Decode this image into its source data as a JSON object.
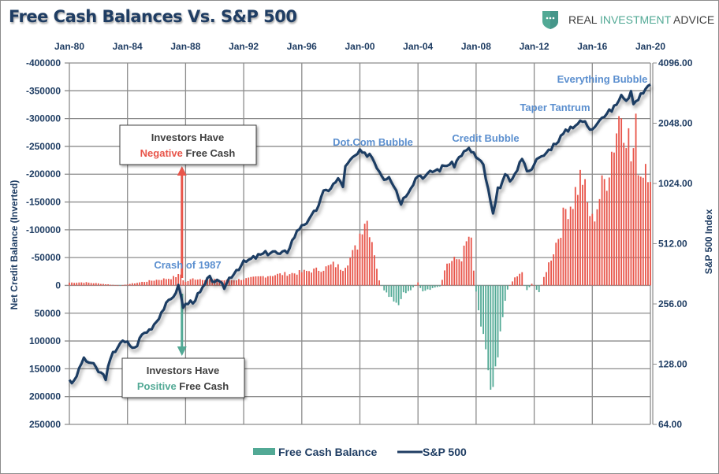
{
  "chart_data": {
    "type": "bar+line",
    "title": "Free Cash Balances Vs. S&P 500",
    "brand": {
      "text_part1": "REAL ",
      "text_part2": "INVESTMENT",
      "text_part3": " ADVICE"
    },
    "x_ticks": [
      "Jan-80",
      "Jan-84",
      "Jan-88",
      "Jan-92",
      "Jan-96",
      "Jan-00",
      "Jan-04",
      "Jan-08",
      "Jan-12",
      "Jan-16",
      "Jan-20"
    ],
    "x_range": [
      1980,
      2020
    ],
    "left_axis": {
      "label": "Net Credit Balance (Inverted)",
      "ticks": [
        "-400000",
        "-350000",
        "-300000",
        "-250000",
        "-200000",
        "-150000",
        "-100000",
        "-50000",
        "0",
        "50000",
        "100000",
        "150000",
        "200000",
        "250000"
      ],
      "range": [
        -400000,
        250000
      ],
      "inverted": true
    },
    "right_axis": {
      "label": "S&P 500 Index",
      "ticks": [
        "4096.00",
        "2048.00",
        "1024.00",
        "512.00",
        "256.00",
        "128.00",
        "64.00"
      ],
      "range": [
        64,
        4096
      ],
      "scale": "log2"
    },
    "grid": true,
    "legend": {
      "position": "bottom",
      "items": [
        {
          "name": "Free Cash Balance",
          "type": "bar",
          "color": "#52a995"
        },
        {
          "name": "S&P 500",
          "type": "line",
          "color": "#1f3d63"
        }
      ]
    },
    "colors": {
      "negative_free_cash": "#e8554a",
      "positive_free_cash": "#52a995",
      "sp500": "#1f3d63",
      "annotation": "#5b8fcf",
      "grid": "#8c8c8c"
    },
    "annotations": [
      {
        "text": "Dot.Com Bubble",
        "x": 1999.3,
        "sp": 1700
      },
      {
        "text": "Credit Bubble",
        "x": 2007.1,
        "sp": 1850
      },
      {
        "text": "Taper Tantrum",
        "x": 2014.6,
        "sp": 2450
      },
      {
        "text": "Everything Bubble",
        "x": 2017.4,
        "sp": 3600
      },
      {
        "text": "Crash of 1987",
        "x": 1986.7,
        "sp": 330
      }
    ],
    "callouts": {
      "negative": {
        "line1": "Investors Have",
        "word": "Negative",
        "rest": " Free Cash"
      },
      "positive": {
        "line1": "Investors Have",
        "word": "Positive",
        "rest": " Free Cash"
      }
    },
    "free_cash_series": {
      "name": "Free Cash Balance (inverted: negative = red bars above zero)",
      "points": [
        [
          1980.0,
          -5000
        ],
        [
          1981.0,
          -5500
        ],
        [
          1982.0,
          -3500
        ],
        [
          1983.0,
          -1000
        ],
        [
          1983.5,
          500
        ],
        [
          1984.0,
          -2000
        ],
        [
          1985.0,
          -6000
        ],
        [
          1986.0,
          -10000
        ],
        [
          1987.0,
          -13000
        ],
        [
          1987.7,
          -20000
        ],
        [
          1987.9,
          -5000
        ],
        [
          1988.5,
          -12000
        ],
        [
          1989.5,
          -11000
        ],
        [
          1990.5,
          -9000
        ],
        [
          1991.5,
          -10000
        ],
        [
          1992.5,
          -13000
        ],
        [
          1993.5,
          -17000
        ],
        [
          1994.5,
          -20000
        ],
        [
          1995.5,
          -22000
        ],
        [
          1996.5,
          -26000
        ],
        [
          1997.5,
          -30000
        ],
        [
          1998.2,
          -38000
        ],
        [
          1998.8,
          -30000
        ],
        [
          1999.3,
          -48000
        ],
        [
          1999.8,
          -70000
        ],
        [
          2000.1,
          -105000
        ],
        [
          2000.4,
          -125000
        ],
        [
          2000.7,
          -100000
        ],
        [
          2001.0,
          -60000
        ],
        [
          2001.3,
          -10000
        ],
        [
          2001.7,
          12000
        ],
        [
          2002.2,
          25000
        ],
        [
          2002.6,
          40000
        ],
        [
          2003.0,
          15000
        ],
        [
          2003.5,
          8000
        ],
        [
          2004.0,
          -5000
        ],
        [
          2004.3,
          12000
        ],
        [
          2004.7,
          8000
        ],
        [
          2005.5,
          2000
        ],
        [
          2006.0,
          -40000
        ],
        [
          2006.5,
          -45000
        ],
        [
          2007.0,
          -50000
        ],
        [
          2007.4,
          -80000
        ],
        [
          2007.6,
          -95000
        ],
        [
          2007.9,
          -5000
        ],
        [
          2008.3,
          60000
        ],
        [
          2008.7,
          120000
        ],
        [
          2009.0,
          170000
        ],
        [
          2009.3,
          150000
        ],
        [
          2009.6,
          90000
        ],
        [
          2009.9,
          40000
        ],
        [
          2010.2,
          5000
        ],
        [
          2010.7,
          -15000
        ],
        [
          2011.2,
          -22000
        ],
        [
          2011.4,
          12000
        ],
        [
          2011.9,
          -5000
        ],
        [
          2012.3,
          15000
        ],
        [
          2012.8,
          -25000
        ],
        [
          2013.3,
          -60000
        ],
        [
          2013.8,
          -100000
        ],
        [
          2014.2,
          -140000
        ],
        [
          2014.6,
          -150000
        ],
        [
          2015.0,
          -180000
        ],
        [
          2015.3,
          -200000
        ],
        [
          2015.6,
          -150000
        ],
        [
          2016.0,
          -115000
        ],
        [
          2016.5,
          -160000
        ],
        [
          2017.0,
          -200000
        ],
        [
          2017.4,
          -250000
        ],
        [
          2017.8,
          -300000
        ],
        [
          2018.0,
          -320000
        ],
        [
          2018.3,
          -300000
        ],
        [
          2018.7,
          -220000
        ],
        [
          2019.0,
          -270000
        ],
        [
          2019.3,
          -200000
        ],
        [
          2019.7,
          -230000
        ],
        [
          2020.0,
          -215000
        ]
      ]
    },
    "sp500_series": {
      "name": "S&P 500",
      "points": [
        [
          1980.0,
          108
        ],
        [
          1980.3,
          102
        ],
        [
          1980.9,
          135
        ],
        [
          1981.5,
          130
        ],
        [
          1982.0,
          118
        ],
        [
          1982.5,
          110
        ],
        [
          1982.9,
          140
        ],
        [
          1983.5,
          165
        ],
        [
          1984.0,
          163
        ],
        [
          1984.5,
          153
        ],
        [
          1985.0,
          180
        ],
        [
          1985.5,
          190
        ],
        [
          1986.0,
          211
        ],
        [
          1986.5,
          245
        ],
        [
          1987.0,
          270
        ],
        [
          1987.6,
          320
        ],
        [
          1987.8,
          240
        ],
        [
          1988.0,
          255
        ],
        [
          1988.5,
          265
        ],
        [
          1989.0,
          290
        ],
        [
          1989.6,
          345
        ],
        [
          1990.0,
          335
        ],
        [
          1990.7,
          310
        ],
        [
          1991.0,
          345
        ],
        [
          1991.5,
          380
        ],
        [
          1992.0,
          410
        ],
        [
          1993.0,
          445
        ],
        [
          1994.0,
          470
        ],
        [
          1994.5,
          450
        ],
        [
          1995.0,
          470
        ],
        [
          1995.5,
          560
        ],
        [
          1996.0,
          640
        ],
        [
          1996.5,
          665
        ],
        [
          1997.0,
          760
        ],
        [
          1997.5,
          920
        ],
        [
          1998.0,
          980
        ],
        [
          1998.6,
          1090
        ],
        [
          1998.8,
          960
        ],
        [
          1999.0,
          1230
        ],
        [
          1999.5,
          1370
        ],
        [
          2000.0,
          1470
        ],
        [
          2000.3,
          1420
        ],
        [
          2000.7,
          1450
        ],
        [
          2001.0,
          1320
        ],
        [
          2001.3,
          1200
        ],
        [
          2001.7,
          1080
        ],
        [
          2002.0,
          1130
        ],
        [
          2002.5,
          950
        ],
        [
          2002.8,
          820
        ],
        [
          2003.0,
          860
        ],
        [
          2003.5,
          990
        ],
        [
          2004.0,
          1130
        ],
        [
          2004.5,
          1110
        ],
        [
          2005.0,
          1180
        ],
        [
          2005.5,
          1210
        ],
        [
          2006.0,
          1280
        ],
        [
          2006.5,
          1270
        ],
        [
          2007.0,
          1440
        ],
        [
          2007.5,
          1510
        ],
        [
          2007.8,
          1470
        ],
        [
          2008.0,
          1380
        ],
        [
          2008.5,
          1260
        ],
        [
          2008.8,
          970
        ],
        [
          2009.0,
          820
        ],
        [
          2009.2,
          700
        ],
        [
          2009.5,
          950
        ],
        [
          2010.0,
          1110
        ],
        [
          2010.5,
          1050
        ],
        [
          2011.0,
          1300
        ],
        [
          2011.3,
          1350
        ],
        [
          2011.6,
          1140
        ],
        [
          2012.0,
          1310
        ],
        [
          2012.5,
          1380
        ],
        [
          2013.0,
          1500
        ],
        [
          2013.5,
          1650
        ],
        [
          2014.0,
          1800
        ],
        [
          2014.5,
          1960
        ],
        [
          2015.0,
          2050
        ],
        [
          2015.5,
          2100
        ],
        [
          2015.7,
          1920
        ],
        [
          2016.0,
          1940
        ],
        [
          2016.5,
          2170
        ],
        [
          2017.0,
          2280
        ],
        [
          2017.5,
          2450
        ],
        [
          2018.0,
          2820
        ],
        [
          2018.2,
          2640
        ],
        [
          2018.7,
          2910
        ],
        [
          2018.9,
          2500
        ],
        [
          2019.3,
          2900
        ],
        [
          2019.6,
          3000
        ],
        [
          2020.0,
          3230
        ]
      ]
    }
  }
}
